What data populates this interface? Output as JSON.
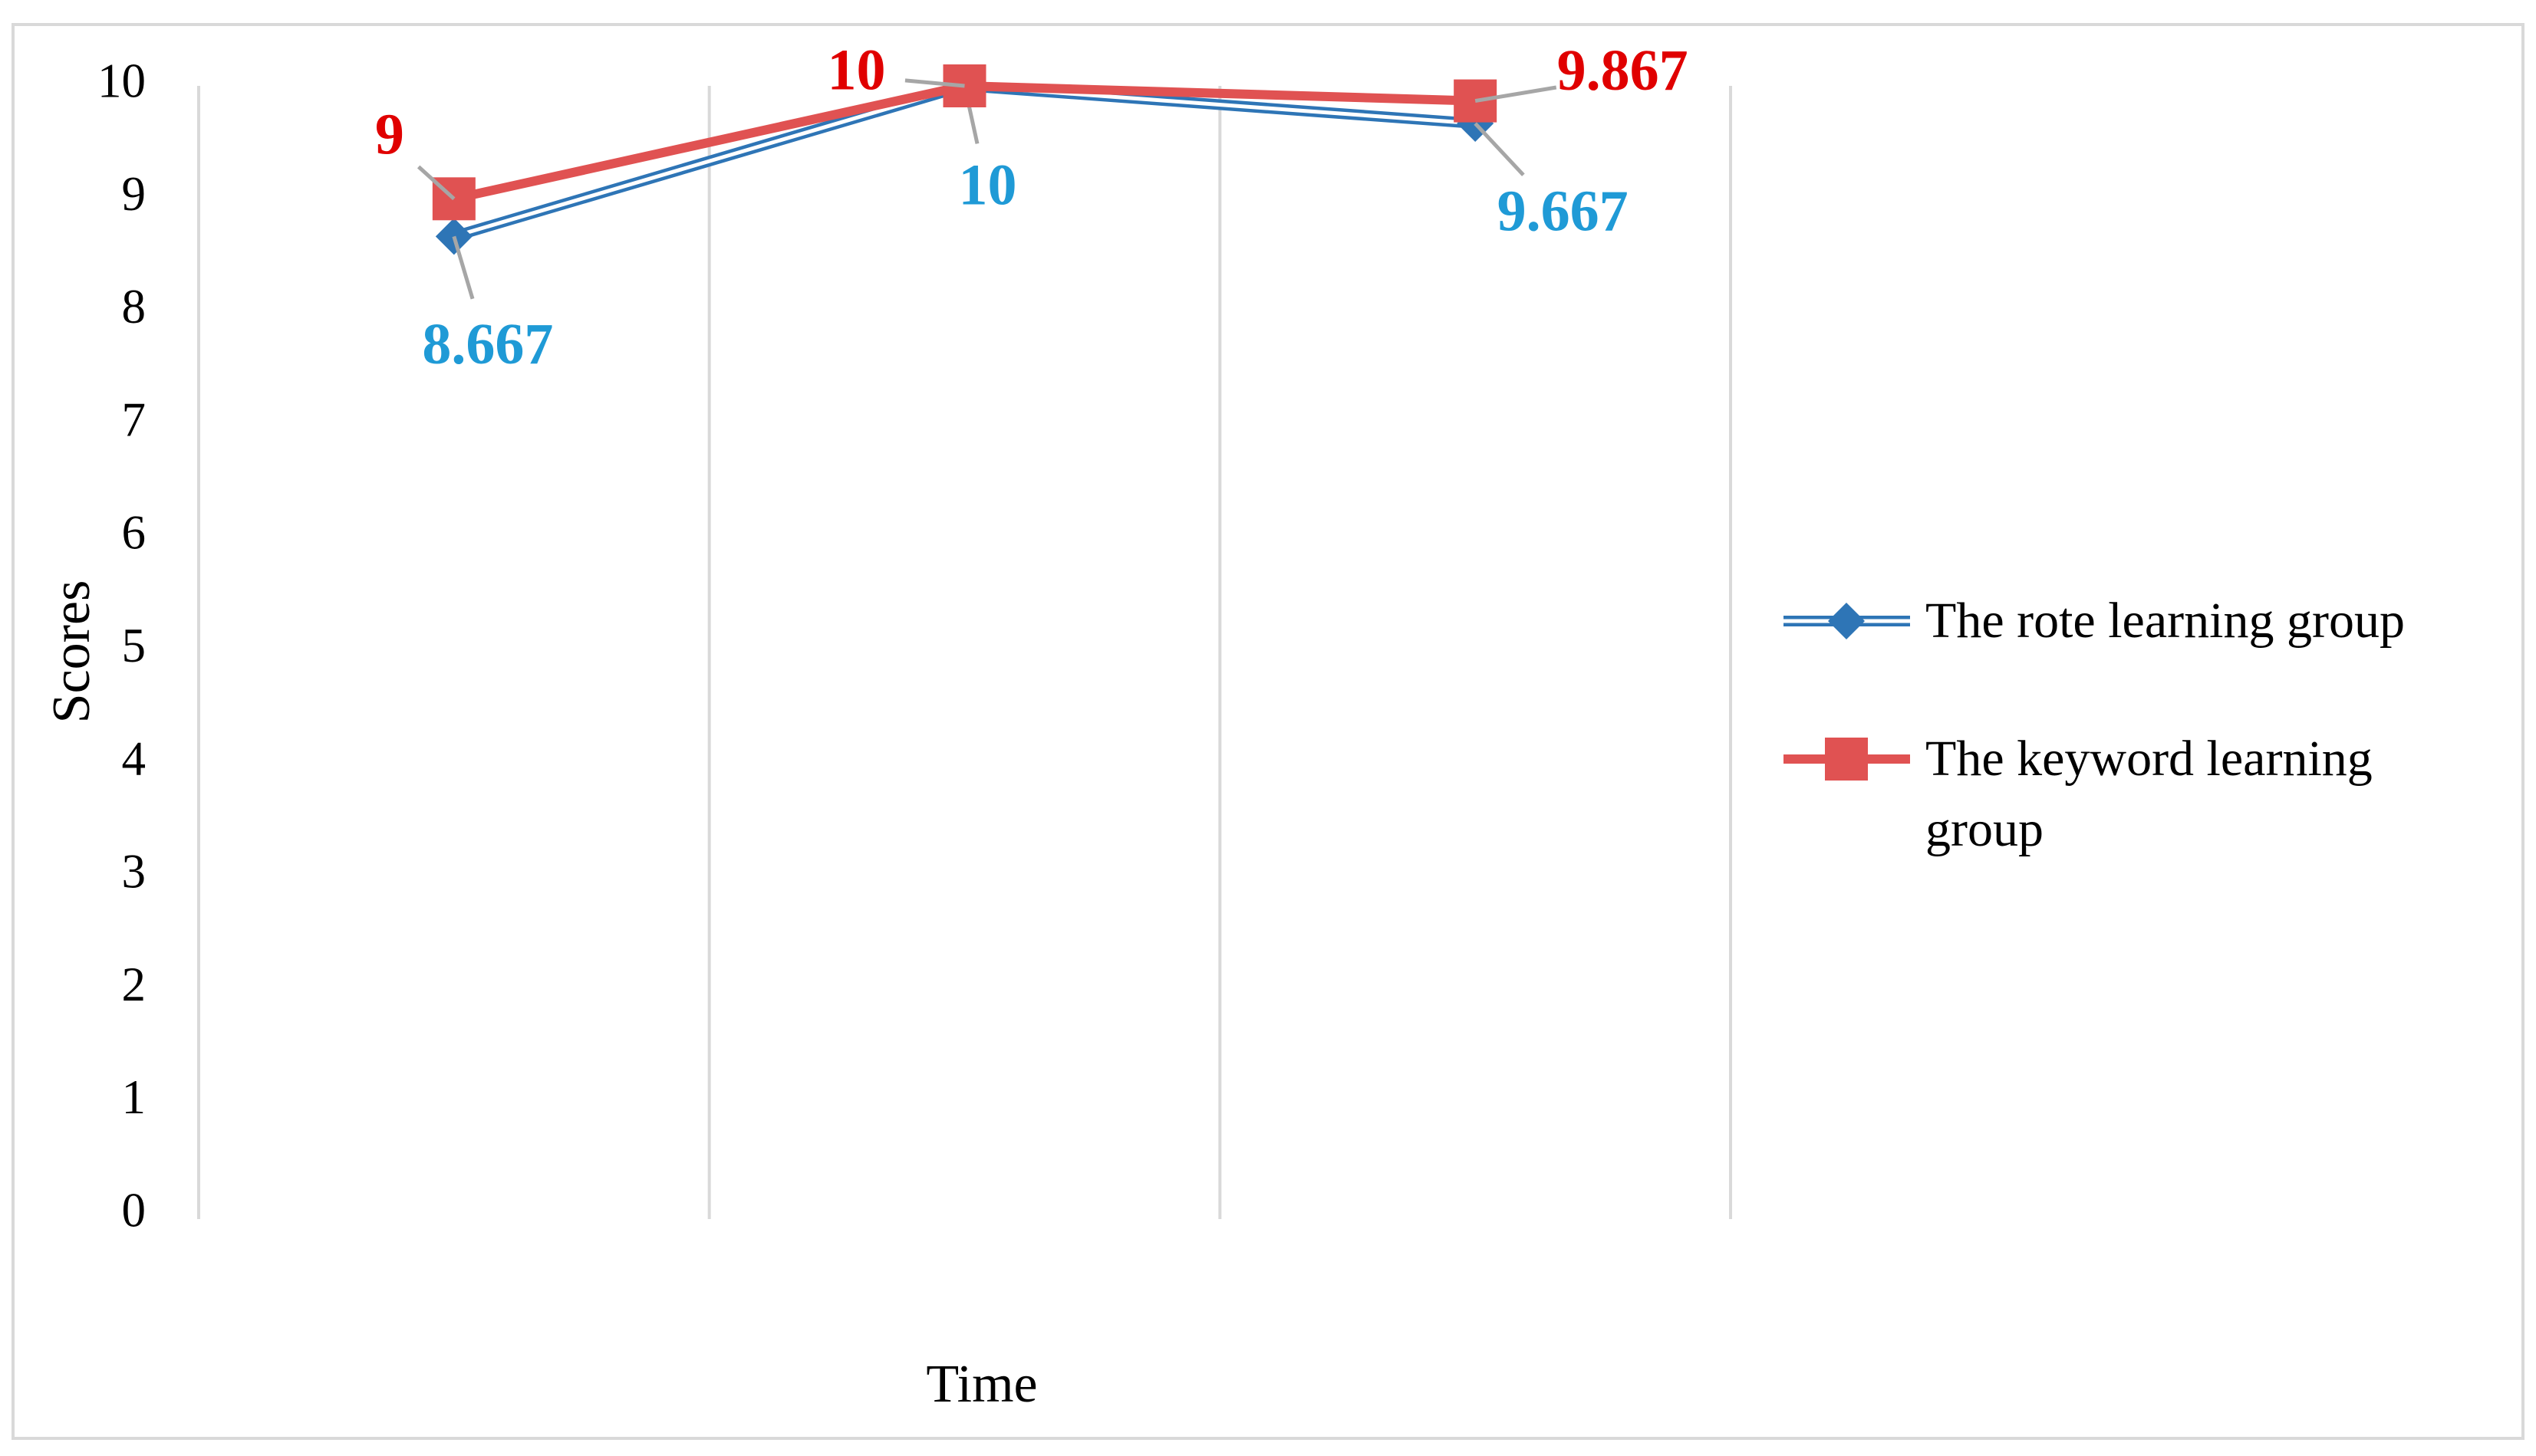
{
  "chart_data": {
    "type": "line",
    "x_label": "Time",
    "y_label": "Scores",
    "categories": [
      null,
      null,
      null
    ],
    "ylim": [
      0,
      10
    ],
    "yticks": [
      0,
      1,
      2,
      3,
      4,
      5,
      6,
      7,
      8,
      9,
      10
    ],
    "grid": true,
    "legend": "right",
    "series": [
      {
        "name": "The rote learning group",
        "color": "#2e75b6",
        "label_color": "#1f9ad6",
        "marker": "diamond",
        "values": [
          8.667,
          10,
          9.667
        ]
      },
      {
        "name": "The keyword learning group",
        "color": "#e05252",
        "label_color": "#e00000",
        "marker": "square",
        "values": [
          9,
          10,
          9.867
        ]
      }
    ]
  }
}
